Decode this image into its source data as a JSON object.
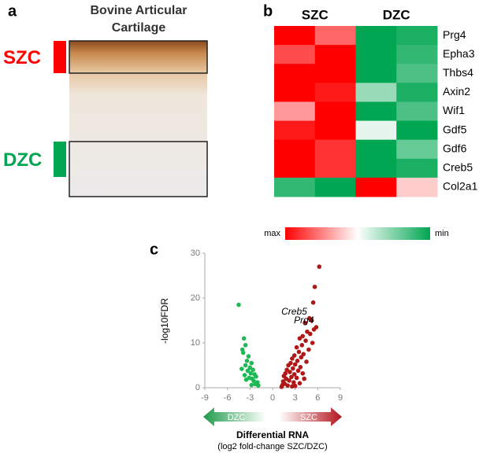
{
  "panel_a": {
    "label": "a",
    "title_lines": [
      "Bovine Articular",
      "Cartilage"
    ],
    "zones": [
      {
        "label": "SZC",
        "color": "#ff0000"
      },
      {
        "label": "DZC",
        "color": "#00a651"
      }
    ]
  },
  "chart_data": [
    {
      "type": "heatmap",
      "label": "b",
      "column_groups": [
        "SZC",
        "DZC"
      ],
      "columns_per_group": 2,
      "rows": [
        "Prg4",
        "Epha3",
        "Thbs4",
        "Axin2",
        "Wif1",
        "Gdf5",
        "Gdf6",
        "Creb5",
        "Col2a1"
      ],
      "values": [
        [
          1,
          0.8,
          0,
          0.05
        ],
        [
          0.85,
          1,
          0,
          0.1
        ],
        [
          1,
          1,
          0,
          0.15
        ],
        [
          1,
          0.95,
          0.3,
          0.05
        ],
        [
          0.7,
          1,
          0,
          0.15
        ],
        [
          0.95,
          1,
          0.45,
          0
        ],
        [
          1,
          0.9,
          0,
          0.2
        ],
        [
          1,
          0.9,
          0,
          0.05
        ],
        [
          0.1,
          0,
          1,
          0.6
        ]
      ],
      "vlim": [
        0,
        1
      ],
      "colors": [
        "#00a651",
        "#ffffff",
        "#ff0000"
      ],
      "legend_labels": [
        "max",
        "min"
      ]
    },
    {
      "type": "scatter",
      "label": "c",
      "ylabel": "-log10FDR",
      "xlabel": "Differential RNA",
      "xlabel_sub": "(log2 fold-change SZC/DZC)",
      "direction_labels": [
        "DZC",
        "SZC"
      ],
      "xlim": [
        -9,
        9
      ],
      "xticks": [
        -9,
        -6,
        -3,
        0,
        3,
        6,
        9
      ],
      "ylim": [
        0,
        30
      ],
      "yticks": [
        0,
        10,
        20,
        30
      ],
      "annotations": [
        {
          "text": "Creb5",
          "x": 4.9,
          "y": 15.5
        },
        {
          "text": "Prg4",
          "x": 5.8,
          "y": 13.5
        }
      ],
      "series": [
        {
          "color": "#1db954",
          "x": [
            -4.5,
            -3.8,
            -3.6,
            -4,
            -3.9,
            -3.2,
            -3.4,
            -2.8,
            -3.6,
            -3,
            -2.6,
            -3.3,
            -2.9,
            -2.4,
            -3.7,
            -2.2,
            -3.1,
            -2.7,
            -2.5,
            -2,
            -3.5,
            -2.3,
            -2.8,
            -1.9,
            -4.1
          ],
          "values": [
            18.5,
            11,
            9.5,
            8.5,
            7.8,
            7,
            6,
            5.5,
            5,
            4.5,
            4,
            3.8,
            3.2,
            3,
            2.8,
            2.5,
            2.2,
            2,
            1.5,
            1.2,
            1.8,
            0.8,
            0.6,
            0.5,
            4.2
          ]
        },
        {
          "color": "#b01818",
          "x": [
            6.2,
            5.6,
            5.4,
            4.9,
            5.2,
            4.3,
            5.8,
            5.5,
            4.6,
            5,
            4,
            3.6,
            4.4,
            5.3,
            3.9,
            3.2,
            4.8,
            3.5,
            4.1,
            2.9,
            3.8,
            2.6,
            3.3,
            4.5,
            2.4,
            3,
            2.1,
            3.7,
            2.7,
            1.9,
            3.4,
            2.3,
            1.7,
            2.9,
            4,
            1.5,
            2.5,
            3.2,
            1.8,
            2.2,
            1.4,
            2.8,
            1.6,
            3.6,
            1.3,
            2,
            2.6,
            1.2,
            3,
            4.2
          ],
          "values": [
            27,
            22.5,
            19,
            15.5,
            15,
            14.5,
            13.5,
            13,
            12.5,
            12,
            11.5,
            11,
            10.5,
            10,
            9.5,
            9,
            8.5,
            8,
            7.5,
            7.2,
            6.8,
            6.5,
            6,
            5.8,
            5.5,
            5.2,
            5,
            4.6,
            4.3,
            4,
            3.8,
            3.5,
            3.2,
            3,
            3.2,
            2.6,
            2.4,
            2.2,
            2,
            1.6,
            1.4,
            1.2,
            0.9,
            1,
            0.6,
            0.5,
            0.3,
            0.2,
            0.4,
            2
          ]
        }
      ]
    }
  ]
}
